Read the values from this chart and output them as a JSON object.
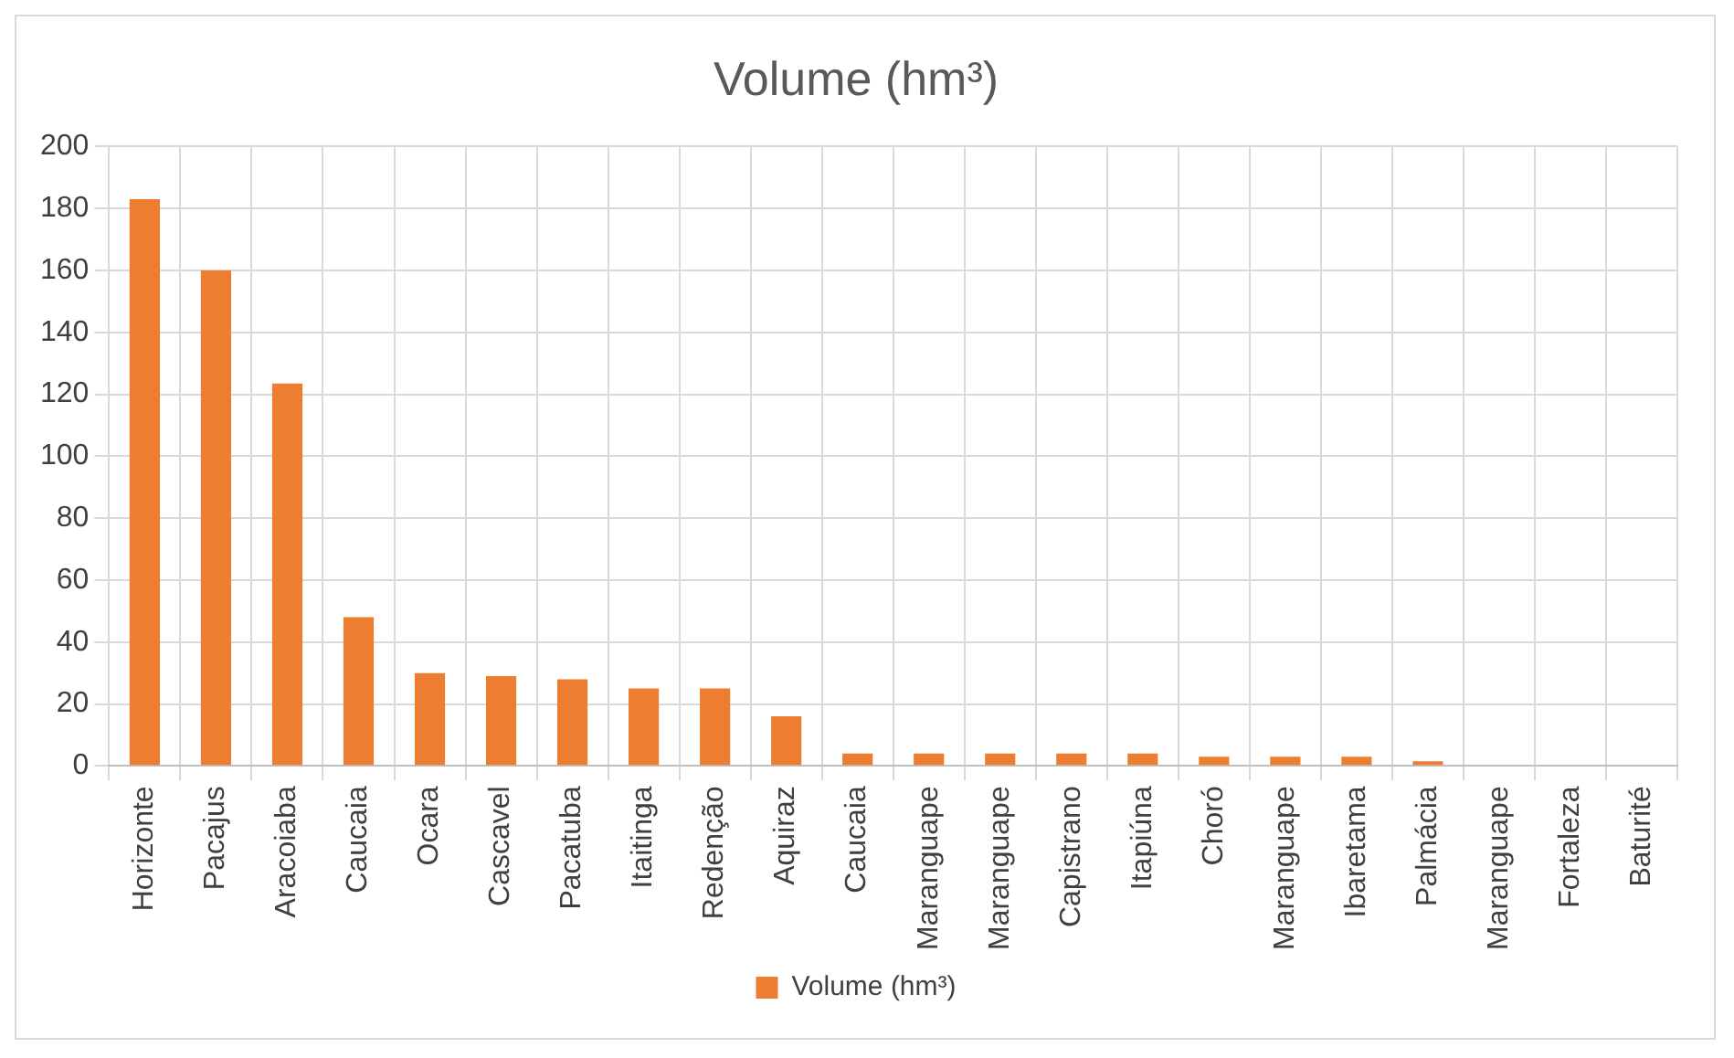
{
  "chart_data": {
    "type": "bar",
    "title": "Volume (hm³)",
    "categories": [
      "Horizonte",
      "Pacajus",
      "Aracoiaba",
      "Caucaia",
      "Ocara",
      "Cascavel",
      "Pacatuba",
      "Itaitinga",
      "Redenção",
      "Aquiraz",
      "Caucaia",
      "Maranguape",
      "Maranguape",
      "Capistrano",
      "Itapiúna",
      "Choró",
      "Maranguape",
      "Ibaretama",
      "Palmácia",
      "Maranguape",
      "Fortaleza",
      "Baturité"
    ],
    "series": [
      {
        "name": "Volume (hm³)",
        "color": "#ed7d31",
        "values": [
          183,
          160,
          123.5,
          48,
          30,
          29,
          28,
          25,
          25,
          16,
          4,
          4,
          4,
          4,
          4,
          3,
          3,
          3,
          1.5,
          0,
          0,
          0
        ]
      }
    ],
    "ylim": [
      0,
      200
    ],
    "yticks": [
      0,
      20,
      40,
      60,
      80,
      100,
      120,
      140,
      160,
      180,
      200
    ],
    "grid": true,
    "legend": "bottom"
  }
}
